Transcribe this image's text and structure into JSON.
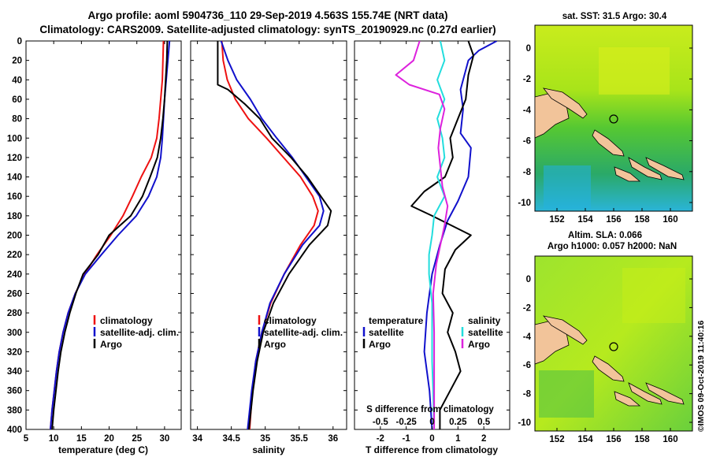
{
  "header": {
    "title_line1": "Argo profile: aoml 5904736_110 29-Sep-2019 4.563S 155.74E (NRT data)",
    "title_line2": "Climatology: CARS2009. Satellite-adjusted climatology: synTS_20190929.nc (0.27d earlier)"
  },
  "colors": {
    "climatology": "#ee1111",
    "satellite": "#1111cc",
    "argo": "#000000",
    "sal_satellite": "#22dddd",
    "sal_argo": "#dd22dd",
    "land": "#f2c49a"
  },
  "map_sst": {
    "title": "sat. SST: 31.5  Argo: 30.4",
    "x_ticks": [
      "152",
      "154",
      "156",
      "158",
      "160"
    ],
    "y_ticks": [
      "0",
      "-2",
      "-4",
      "-6",
      "-8",
      "-10"
    ]
  },
  "map_sla": {
    "title_line1": "Altim. SLA: 0.066",
    "title_line2": "Argo h1000: 0.057 h2000: NaN",
    "x_ticks": [
      "152",
      "154",
      "156",
      "158",
      "160"
    ],
    "y_ticks": [
      "0",
      "-2",
      "-4",
      "-6",
      "-8",
      "-10"
    ]
  },
  "watermark": "©IMOS 09-Oct-2019 11:40:16",
  "chart_data": [
    {
      "type": "line",
      "title": "",
      "xlabel": "temperature (deg C)",
      "ylabel": "",
      "xlim": [
        5,
        33
      ],
      "ylim": [
        400,
        0
      ],
      "x_ticks": [
        "5",
        "10",
        "15",
        "20",
        "25",
        "30"
      ],
      "y_ticks": [
        "0",
        "20",
        "40",
        "60",
        "80",
        "100",
        "120",
        "140",
        "160",
        "180",
        "200",
        "220",
        "240",
        "260",
        "280",
        "300",
        "320",
        "340",
        "360",
        "380",
        "400"
      ],
      "legend": [
        "climatology",
        "satellite-adj. clim.",
        "Argo"
      ],
      "legend_position": "bottom-right",
      "series": [
        {
          "name": "climatology",
          "color": "#ee1111",
          "points": [
            [
              29.8,
              0
            ],
            [
              29.7,
              20
            ],
            [
              29.6,
              40
            ],
            [
              29.3,
              60
            ],
            [
              29.0,
              80
            ],
            [
              28.6,
              100
            ],
            [
              27.6,
              120
            ],
            [
              25.8,
              140
            ],
            [
              24.2,
              160
            ],
            [
              22.5,
              180
            ],
            [
              20.3,
              200
            ],
            [
              17.8,
              220
            ],
            [
              15.6,
              240
            ],
            [
              13.9,
              260
            ],
            [
              12.6,
              280
            ],
            [
              11.7,
              300
            ],
            [
              11.0,
              320
            ],
            [
              10.5,
              340
            ],
            [
              10.1,
              360
            ],
            [
              9.7,
              380
            ],
            [
              9.4,
              400
            ]
          ]
        },
        {
          "name": "satellite-adj. clim.",
          "color": "#1111cc",
          "points": [
            [
              30.9,
              0
            ],
            [
              30.6,
              20
            ],
            [
              30.3,
              40
            ],
            [
              30.0,
              60
            ],
            [
              29.8,
              80
            ],
            [
              29.6,
              100
            ],
            [
              29.3,
              120
            ],
            [
              28.6,
              140
            ],
            [
              27.1,
              160
            ],
            [
              24.9,
              180
            ],
            [
              21.6,
              200
            ],
            [
              18.6,
              220
            ],
            [
              15.7,
              240
            ],
            [
              13.9,
              260
            ],
            [
              12.6,
              280
            ],
            [
              11.7,
              300
            ],
            [
              11.0,
              320
            ],
            [
              10.5,
              340
            ],
            [
              10.1,
              360
            ],
            [
              9.7,
              380
            ],
            [
              9.4,
              400
            ]
          ]
        },
        {
          "name": "Argo",
          "color": "#000000",
          "points": [
            [
              30.5,
              0
            ],
            [
              30.4,
              20
            ],
            [
              30.2,
              40
            ],
            [
              30.0,
              60
            ],
            [
              29.7,
              80
            ],
            [
              29.3,
              100
            ],
            [
              28.7,
              120
            ],
            [
              27.4,
              140
            ],
            [
              26.0,
              160
            ],
            [
              23.9,
              180
            ],
            [
              20.0,
              200
            ],
            [
              18.0,
              220
            ],
            [
              15.3,
              240
            ],
            [
              14.0,
              260
            ],
            [
              12.9,
              280
            ],
            [
              12.0,
              300
            ],
            [
              11.3,
              320
            ],
            [
              10.8,
              340
            ],
            [
              10.4,
              360
            ],
            [
              10.0,
              380
            ],
            [
              9.7,
              400
            ]
          ]
        }
      ]
    },
    {
      "type": "line",
      "title": "",
      "xlabel": "salinity",
      "ylabel": "",
      "xlim": [
        33.9,
        36.2
      ],
      "ylim": [
        400,
        0
      ],
      "x_ticks": [
        "34",
        "34.5",
        "35",
        "35.5",
        "36"
      ],
      "y_ticks": [],
      "legend": [
        "climatology",
        "satellite-adj. clim.",
        "Argo"
      ],
      "legend_position": "bottom-right",
      "series": [
        {
          "name": "climatology",
          "color": "#ee1111",
          "points": [
            [
              34.36,
              0
            ],
            [
              34.38,
              20
            ],
            [
              34.44,
              40
            ],
            [
              34.56,
              60
            ],
            [
              34.75,
              80
            ],
            [
              35.02,
              100
            ],
            [
              35.27,
              120
            ],
            [
              35.52,
              140
            ],
            [
              35.7,
              160
            ],
            [
              35.78,
              175
            ],
            [
              35.72,
              190
            ],
            [
              35.52,
              210
            ],
            [
              35.28,
              240
            ],
            [
              35.08,
              270
            ],
            [
              34.95,
              300
            ],
            [
              34.86,
              330
            ],
            [
              34.81,
              360
            ],
            [
              34.77,
              400
            ]
          ]
        },
        {
          "name": "satellite-adj. clim.",
          "color": "#1111cc",
          "points": [
            [
              34.35,
              0
            ],
            [
              34.45,
              20
            ],
            [
              34.58,
              40
            ],
            [
              34.78,
              60
            ],
            [
              34.95,
              80
            ],
            [
              35.17,
              100
            ],
            [
              35.4,
              120
            ],
            [
              35.6,
              140
            ],
            [
              35.8,
              160
            ],
            [
              35.86,
              175
            ],
            [
              35.8,
              190
            ],
            [
              35.55,
              210
            ],
            [
              35.28,
              240
            ],
            [
              35.07,
              270
            ],
            [
              34.95,
              300
            ],
            [
              34.86,
              330
            ],
            [
              34.8,
              360
            ],
            [
              34.74,
              400
            ]
          ]
        },
        {
          "name": "Argo",
          "color": "#000000",
          "points": [
            [
              34.3,
              0
            ],
            [
              34.3,
              20
            ],
            [
              34.3,
              45
            ],
            [
              34.45,
              50
            ],
            [
              34.7,
              65
            ],
            [
              34.92,
              80
            ],
            [
              35.1,
              100
            ],
            [
              35.38,
              120
            ],
            [
              35.62,
              140
            ],
            [
              35.82,
              160
            ],
            [
              35.97,
              175
            ],
            [
              35.92,
              190
            ],
            [
              35.65,
              210
            ],
            [
              35.35,
              240
            ],
            [
              35.12,
              270
            ],
            [
              34.97,
              300
            ],
            [
              34.88,
              330
            ],
            [
              34.82,
              360
            ],
            [
              34.76,
              400
            ]
          ]
        }
      ]
    },
    {
      "type": "line",
      "title": "",
      "xlabel": "T difference from climatology",
      "ylabel": "",
      "xlim": [
        -3,
        3
      ],
      "ylim": [
        400,
        0
      ],
      "x_ticks": [
        "-2",
        "-1",
        "0",
        "1",
        "2"
      ],
      "y_ticks": [],
      "top_axis_label": "S difference from climatology",
      "top_axis_ticks": [
        "-0.5",
        "-0.25",
        "0",
        "0.25",
        "0.5"
      ],
      "legend_left_title": "temperature",
      "legend_right_title": "salinity",
      "legend": [
        "satellite",
        "Argo",
        "satellite",
        "Argo"
      ],
      "legend_position": "bottom",
      "series": [
        {
          "name": "temperature satellite",
          "color": "#1111cc",
          "points": [
            [
              2.5,
              0
            ],
            [
              1.8,
              10
            ],
            [
              1.4,
              20
            ],
            [
              1.1,
              50
            ],
            [
              1.2,
              70
            ],
            [
              1.1,
              95
            ],
            [
              1.5,
              110
            ],
            [
              1.4,
              140
            ],
            [
              1.0,
              165
            ],
            [
              0.6,
              185
            ],
            [
              0.3,
              210
            ],
            [
              0.0,
              240
            ],
            [
              -0.2,
              280
            ],
            [
              -0.3,
              320
            ],
            [
              -0.1,
              360
            ],
            [
              0.0,
              400
            ]
          ]
        },
        {
          "name": "temperature Argo",
          "color": "#000000",
          "points": [
            [
              1.4,
              0
            ],
            [
              1.6,
              15
            ],
            [
              1.4,
              35
            ],
            [
              1.3,
              60
            ],
            [
              1.0,
              80
            ],
            [
              0.7,
              100
            ],
            [
              0.8,
              120
            ],
            [
              0.5,
              140
            ],
            [
              -0.3,
              155
            ],
            [
              -0.8,
              170
            ],
            [
              0.0,
              180
            ],
            [
              1.5,
              200
            ],
            [
              0.9,
              215
            ],
            [
              0.5,
              235
            ],
            [
              0.4,
              260
            ],
            [
              0.8,
              280
            ],
            [
              0.6,
              300
            ],
            [
              0.9,
              320
            ],
            [
              1.1,
              340
            ],
            [
              0.7,
              360
            ],
            [
              0.3,
              380
            ],
            [
              0.3,
              400
            ]
          ]
        },
        {
          "name": "salinity satellite",
          "color": "#22dddd",
          "points": [
            [
              0.08,
              0
            ],
            [
              0.12,
              20
            ],
            [
              0.05,
              40
            ],
            [
              0.12,
              60
            ],
            [
              0.05,
              80
            ],
            [
              0.1,
              100
            ],
            [
              0.12,
              120
            ],
            [
              0.05,
              140
            ],
            [
              0.12,
              160
            ],
            [
              0.02,
              180
            ],
            [
              0.0,
              200
            ],
            [
              -0.03,
              220
            ],
            [
              -0.03,
              240
            ],
            [
              0.0,
              270
            ],
            [
              0.0,
              300
            ],
            [
              0.0,
              330
            ],
            [
              0.01,
              360
            ],
            [
              0.02,
              400
            ]
          ]
        },
        {
          "name": "salinity Argo",
          "color": "#dd22dd",
          "points": [
            [
              -0.12,
              0
            ],
            [
              -0.18,
              20
            ],
            [
              -0.35,
              35
            ],
            [
              -0.22,
              45
            ],
            [
              0.07,
              55
            ],
            [
              0.12,
              70
            ],
            [
              0.08,
              90
            ],
            [
              0.06,
              110
            ],
            [
              0.08,
              130
            ],
            [
              0.1,
              150
            ],
            [
              0.15,
              170
            ],
            [
              0.12,
              190
            ],
            [
              0.08,
              210
            ],
            [
              0.04,
              230
            ],
            [
              0.01,
              260
            ],
            [
              0.02,
              300
            ],
            [
              0.02,
              340
            ],
            [
              0.02,
              400
            ]
          ]
        }
      ]
    }
  ]
}
